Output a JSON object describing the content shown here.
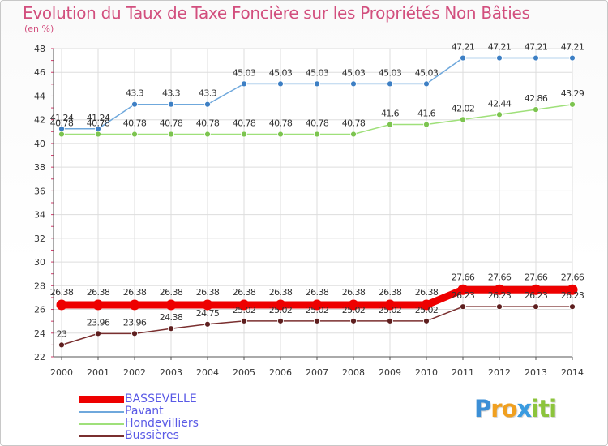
{
  "title": "Evolution du Taux de Taxe Foncière sur les Propriétés Non Bâties",
  "subtitle": "(en %)",
  "logo": {
    "letters": [
      "P",
      "r",
      "o",
      "x",
      "i",
      "t",
      "i"
    ],
    "colors": [
      "#3c8fd6",
      "#f0a020",
      "#f0a020",
      "#3a9be0",
      "#8cc43c",
      "#8cc43c",
      "#8cc43c"
    ]
  },
  "chart_data": {
    "type": "line",
    "title": "Evolution du Taux de Taxe Foncière sur les Propriétés Non Bâties",
    "ylabel": "(en %)",
    "xlabel": "",
    "ylim": [
      22,
      48
    ],
    "yticks": [
      22,
      24,
      26,
      28,
      30,
      32,
      34,
      36,
      38,
      40,
      42,
      44,
      46,
      48
    ],
    "categories": [
      "2000",
      "2001",
      "2002",
      "2003",
      "2004",
      "2005",
      "2006",
      "2007",
      "2008",
      "2009",
      "2010",
      "2011",
      "2012",
      "2013",
      "2014"
    ],
    "grid": true,
    "legend_position": "bottom-left",
    "series": [
      {
        "name": "BASSEVELLE",
        "color": "#ee0000",
        "thick": true,
        "values": [
          26.38,
          26.38,
          26.38,
          26.38,
          26.38,
          26.38,
          26.38,
          26.38,
          26.38,
          26.38,
          26.38,
          27.66,
          27.66,
          27.66,
          27.66
        ],
        "labels": [
          "26.38",
          "26.38",
          "26.38",
          "26.38",
          "26.38",
          "26.38",
          "26.38",
          "26.38",
          "26.38",
          "26.38",
          "26.38",
          "27.66",
          "27.66",
          "27.66",
          "27.66"
        ]
      },
      {
        "name": "Pavant",
        "color": "#6fa8dc",
        "marker": "#3d7fc4",
        "thick": false,
        "values": [
          41.24,
          41.24,
          43.3,
          43.3,
          43.3,
          45.03,
          45.03,
          45.03,
          45.03,
          45.03,
          45.03,
          47.21,
          47.21,
          47.21,
          47.21
        ],
        "labels": [
          "41.24",
          "41.24",
          "43.3",
          "43.3",
          "43.3",
          "45.03",
          "45.03",
          "45.03",
          "45.03",
          "45.03",
          "45.03",
          "47.21",
          "47.21",
          "47.21",
          "47.21"
        ]
      },
      {
        "name": "Hondevilliers",
        "color": "#9fe07a",
        "marker": "#7cc44f",
        "thick": false,
        "values": [
          40.78,
          40.78,
          40.78,
          40.78,
          40.78,
          40.78,
          40.78,
          40.78,
          40.78,
          41.6,
          41.6,
          42.02,
          42.44,
          42.86,
          43.29
        ],
        "labels": [
          "40.78",
          "40.78",
          "40.78",
          "40.78",
          "40.78",
          "40.78",
          "40.78",
          "40.78",
          "40.78",
          "41.6",
          "41.6",
          "42.02",
          "42.44",
          "42.86",
          "43.29"
        ]
      },
      {
        "name": "Bussières",
        "color": "#7a2f2f",
        "marker": "#5e1f1f",
        "thick": false,
        "values": [
          23,
          23.96,
          23.96,
          24.38,
          24.75,
          25.02,
          25.02,
          25.02,
          25.02,
          25.02,
          25.02,
          26.23,
          26.23,
          26.23,
          26.23
        ],
        "labels": [
          "23",
          "23.96",
          "23.96",
          "24.38",
          "24.75",
          "25.02",
          "25.02",
          "25.02",
          "25.02",
          "25.02",
          "25.02",
          "26.23",
          "26.23",
          "26.23",
          "26.23"
        ]
      }
    ]
  }
}
